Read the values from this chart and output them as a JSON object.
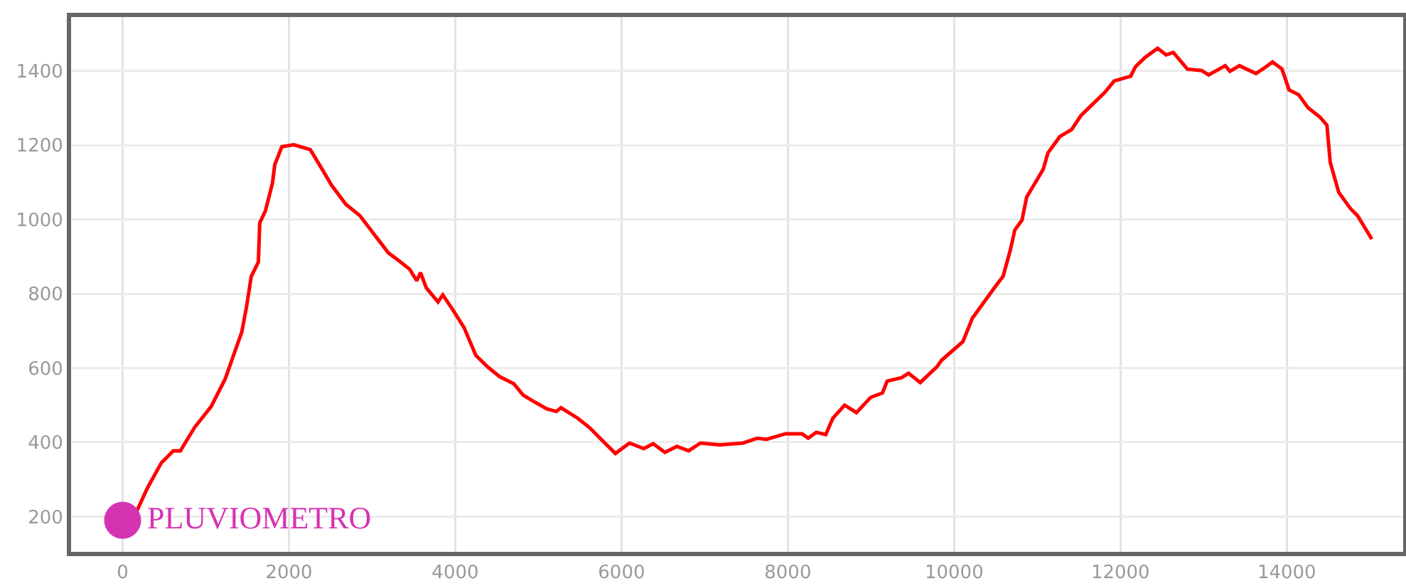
{
  "chart_data": {
    "type": "line",
    "xlim": [
      -620,
      15400
    ],
    "ylim": [
      105,
      1545
    ],
    "xticks": [
      0,
      2000,
      4000,
      6000,
      8000,
      10000,
      12000,
      14000
    ],
    "yticks": [
      200,
      400,
      600,
      800,
      1000,
      1200,
      1400
    ],
    "grid": true,
    "legend": false,
    "line_style": "solid",
    "series": [
      {
        "color": "#ff0000",
        "x": [
          154,
          296,
          466,
          609,
          694,
          865,
          1063,
          1234,
          1433,
          1490,
          1547,
          1632,
          1649,
          1717,
          1802,
          1830,
          1915,
          2059,
          2257,
          2400,
          2513,
          2684,
          2855,
          3025,
          3196,
          3310,
          3452,
          3537,
          3583,
          3651,
          3793,
          3850,
          3964,
          4106,
          4248,
          4390,
          4533,
          4703,
          4817,
          4959,
          5101,
          5215,
          5272,
          5471,
          5613,
          5755,
          5926,
          6096,
          6267,
          6380,
          6522,
          6665,
          6807,
          6949,
          7177,
          7461,
          7632,
          7745,
          7973,
          8171,
          8245,
          8342,
          8456,
          8541,
          8683,
          8825,
          8996,
          9138,
          9195,
          9366,
          9451,
          9593,
          9792,
          9849,
          10105,
          10219,
          10361,
          10504,
          10589,
          10674,
          10730,
          10816,
          10872,
          10957,
          11071,
          11128,
          11270,
          11413,
          11526,
          11640,
          11811,
          11924,
          12123,
          12180,
          12294,
          12447,
          12549,
          12635,
          12805,
          12976,
          13061,
          13260,
          13317,
          13431,
          13516,
          13630,
          13744,
          13829,
          13943,
          14028,
          14142,
          14256,
          14398,
          14483,
          14523,
          14625,
          14767,
          14852,
          15023
        ],
        "values": [
          207,
          276,
          345,
          377,
          377,
          440,
          496,
          571,
          697,
          765,
          847,
          885,
          991,
          1023,
          1098,
          1148,
          1196,
          1201,
          1188,
          1135,
          1092,
          1041,
          1010,
          960,
          910,
          891,
          866,
          835,
          857,
          816,
          778,
          797,
          759,
          709,
          634,
          603,
          577,
          558,
          527,
          508,
          490,
          483,
          493,
          465,
          440,
          408,
          370,
          398,
          383,
          396,
          373,
          389,
          377,
          398,
          393,
          398,
          411,
          408,
          423,
          423,
          411,
          427,
          421,
          465,
          500,
          480,
          521,
          533,
          565,
          574,
          586,
          561,
          603,
          621,
          671,
          734,
          778,
          822,
          847,
          916,
          972,
          998,
          1060,
          1092,
          1135,
          1179,
          1223,
          1242,
          1280,
          1305,
          1342,
          1373,
          1386,
          1411,
          1436,
          1461,
          1443,
          1450,
          1405,
          1401,
          1389,
          1414,
          1399,
          1414,
          1405,
          1393,
          1410,
          1424,
          1405,
          1349,
          1336,
          1301,
          1276,
          1254,
          1154,
          1073,
          1029,
          1010,
          947
        ]
      },
      {
        "type": "scatter",
        "name": "PLUVIOMETRO",
        "color": "#d633b3",
        "x": [
          0
        ],
        "values": [
          190
        ]
      }
    ]
  }
}
